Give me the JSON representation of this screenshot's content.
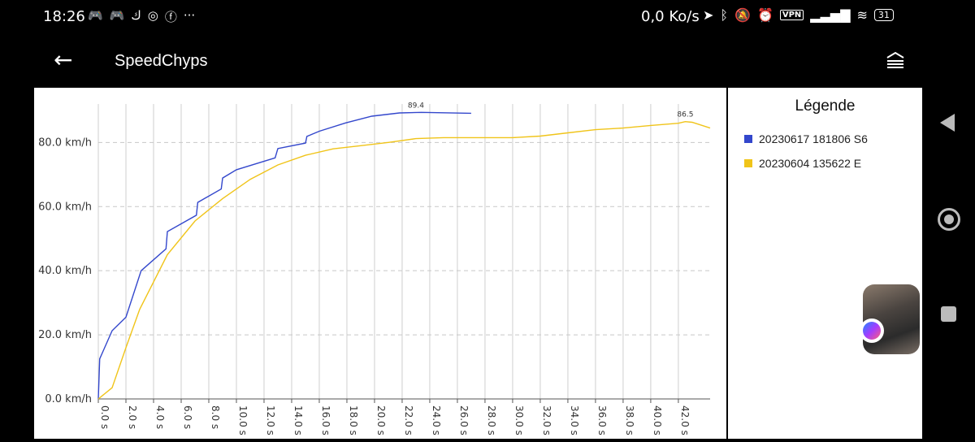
{
  "status": {
    "time": "18:26",
    "left_icons": [
      "discord-icon",
      "discord-icon",
      "app-icon",
      "instagram-icon",
      "facebook-icon",
      "more-icon"
    ],
    "network_speed": "0,0 Ko/s",
    "vpn": "VPN",
    "battery": "31"
  },
  "appbar": {
    "title": "SpeedChyps"
  },
  "legend": {
    "title": "Légende",
    "items": [
      {
        "label": "20230617 181806 S6",
        "color": "#3347cc"
      },
      {
        "label": "20230604 135622 E",
        "color": "#f0c419"
      }
    ]
  },
  "chart_data": {
    "type": "line",
    "x_ticks": [
      "0.0 s",
      "2.0 s",
      "4.0 s",
      "6.0 s",
      "8.0 s",
      "10.0 s",
      "12.0 s",
      "14.0 s",
      "16.0 s",
      "18.0 s",
      "20.0 s",
      "22.0 s",
      "24.0 s",
      "26.0 s",
      "28.0 s",
      "30.0 s",
      "32.0 s",
      "34.0 s",
      "36.0 s",
      "38.0 s",
      "40.0 s",
      "42.0 s"
    ],
    "y_ticks": [
      "0.0 km/h",
      "20.0 km/h",
      "40.0 km/h",
      "60.0 km/h",
      "80.0 km/h"
    ],
    "xlim": [
      0,
      44.3
    ],
    "ylim": [
      0,
      92
    ],
    "grid": true,
    "series": [
      {
        "name": "20230617 181806 S6",
        "color": "#3347cc",
        "max_label": "89.4",
        "max_point": [
          23.0,
          89.4
        ],
        "x": [
          0,
          0.1,
          1.0,
          2.0,
          3.1,
          4.9,
          5.0,
          7.1,
          7.2,
          8.9,
          9.0,
          10.0,
          12.8,
          13.0,
          15.0,
          15.1,
          16.0,
          17.9,
          19.8,
          21.8,
          23.4,
          27.0
        ],
        "y": [
          0,
          12.5,
          21.3,
          25.5,
          40.0,
          46.8,
          52.2,
          57.3,
          61.3,
          65.5,
          68.9,
          71.5,
          75.2,
          78.1,
          79.8,
          81.9,
          83.5,
          86.1,
          88.2,
          89.2,
          89.4,
          89.1
        ]
      },
      {
        "name": "20230604 135622 E",
        "color": "#f0c419",
        "max_label": "86.5",
        "max_point": [
          42.5,
          86.5
        ],
        "x": [
          0,
          1.0,
          2.0,
          3.0,
          5.0,
          7.0,
          9.0,
          11.0,
          13.0,
          15.0,
          17.0,
          19.0,
          21.0,
          23.0,
          25.0,
          27.0,
          30.0,
          32.0,
          34.0,
          36.0,
          38.0,
          40.0,
          42.0,
          42.5,
          43.0,
          44.3
        ],
        "y": [
          0,
          3.5,
          16.0,
          28.0,
          45.0,
          55.5,
          62.5,
          68.5,
          73.0,
          76.0,
          78.0,
          79.0,
          80.0,
          81.2,
          81.5,
          81.5,
          81.5,
          82.0,
          83.0,
          84.0,
          84.5,
          85.3,
          86.0,
          86.5,
          86.3,
          84.5
        ]
      }
    ]
  }
}
